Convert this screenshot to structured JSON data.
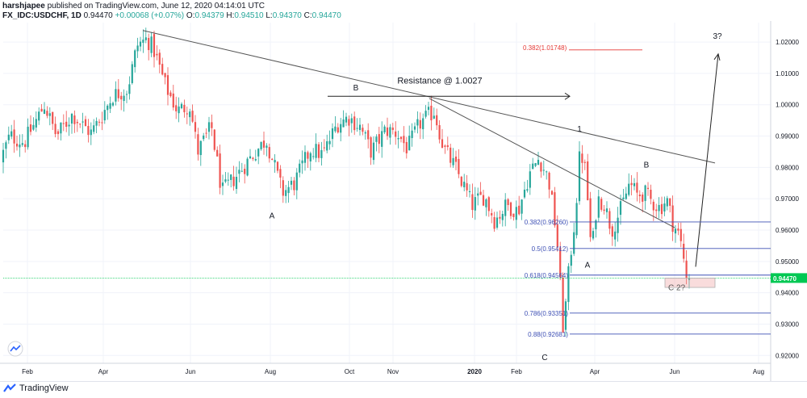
{
  "header": {
    "author": "harshjapee",
    "published": "published on TradingView.com, June 12, 2020 04:14:01 UTC",
    "symbol": "FX_IDC:USDCHF, 1D",
    "last": "0.94470",
    "change": "+0.00068 (+0.07%)",
    "o_label": "O:",
    "o_value": "0.94379",
    "h_label": "H:",
    "h_value": "0.94510",
    "l_label": "L:",
    "l_value": "0.94370",
    "c_label": "C:",
    "c_value": "0.94470"
  },
  "footer": {
    "brand": "TradingView"
  },
  "colors": {
    "up": "#26a69a",
    "down": "#ef5350",
    "fib": "#3f51b5",
    "red": "#e53935",
    "grid": "#f0f3fa",
    "price_badge": "#00c853"
  },
  "chart_data": {
    "type": "candlestick",
    "ylim": [
      0.9175,
      1.0262
    ],
    "y_ticks": [
      "1.02000",
      "1.01000",
      "1.00000",
      "0.99000",
      "0.98000",
      "0.97000",
      "0.96000",
      "0.95000",
      "0.94000",
      "0.93000",
      "0.92000"
    ],
    "y_tick_values": [
      1.02,
      1.01,
      1.0,
      0.99,
      0.98,
      0.97,
      0.96,
      0.95,
      0.94,
      0.93,
      0.92
    ],
    "x_labels": [
      "Feb",
      "Apr",
      "Jun",
      "Aug",
      "Oct",
      "Nov",
      "2020",
      "Feb",
      "Apr",
      "Jun",
      "Aug"
    ],
    "x_label_positions": [
      34,
      128,
      236,
      335,
      433,
      487,
      588,
      640,
      737,
      836,
      940
    ],
    "price_badge": "0.94470",
    "last_price": 0.9447,
    "close_anchors": [
      [
        0,
        0.982
      ],
      [
        12,
        0.99
      ],
      [
        30,
        0.988
      ],
      [
        45,
        0.995
      ],
      [
        55,
        1.0
      ],
      [
        70,
        0.99
      ],
      [
        90,
        0.997
      ],
      [
        100,
        0.994
      ],
      [
        113,
        0.991
      ],
      [
        125,
        0.996
      ],
      [
        140,
        1.003
      ],
      [
        158,
        1.005
      ],
      [
        170,
        1.019
      ],
      [
        182,
        1.021
      ],
      [
        190,
        1.018
      ],
      [
        205,
        1.006
      ],
      [
        220,
        0.998
      ],
      [
        235,
        1.0
      ],
      [
        245,
        0.985
      ],
      [
        262,
        0.993
      ],
      [
        275,
        0.972
      ],
      [
        292,
        0.977
      ],
      [
        310,
        0.983
      ],
      [
        330,
        0.989
      ],
      [
        350,
        0.972
      ],
      [
        365,
        0.975
      ],
      [
        385,
        0.986
      ],
      [
        400,
        0.984
      ],
      [
        418,
        0.994
      ],
      [
        432,
        0.996
      ],
      [
        446,
        0.993
      ],
      [
        460,
        0.985
      ],
      [
        478,
        0.992
      ],
      [
        492,
        0.991
      ],
      [
        505,
        0.986
      ],
      [
        520,
        0.994
      ],
      [
        538,
        0.998
      ],
      [
        550,
        0.986
      ],
      [
        566,
        0.979
      ],
      [
        585,
        0.968
      ],
      [
        600,
        0.971
      ],
      [
        613,
        0.963
      ],
      [
        628,
        0.968
      ],
      [
        642,
        0.966
      ],
      [
        656,
        0.978
      ],
      [
        668,
        0.983
      ],
      [
        680,
        0.976
      ],
      [
        690,
        0.958
      ],
      [
        698,
        0.928
      ],
      [
        706,
        0.95
      ],
      [
        713,
        0.965
      ],
      [
        719,
        0.986
      ],
      [
        726,
        0.978
      ],
      [
        733,
        0.952
      ],
      [
        740,
        0.97
      ],
      [
        748,
        0.969
      ],
      [
        758,
        0.96
      ],
      [
        770,
        0.967
      ],
      [
        780,
        0.975
      ],
      [
        790,
        0.971
      ],
      [
        798,
        0.972
      ],
      [
        808,
        0.969
      ],
      [
        818,
        0.967
      ],
      [
        826,
        0.97
      ],
      [
        834,
        0.962
      ],
      [
        842,
        0.958
      ],
      [
        848,
        0.95
      ],
      [
        854,
        0.9447
      ]
    ],
    "annotations": {
      "labels": [
        {
          "text": "A",
          "x": 337,
          "y": 0.9637
        },
        {
          "text": "B",
          "x": 441,
          "y": 1.0045
        },
        {
          "text": "Resistance @ 1.0027",
          "x": 545,
          "y": 1.0067
        },
        {
          "text": "1",
          "x": 718,
          "y": 0.9914
        },
        {
          "text": "B",
          "x": 801,
          "y": 0.98
        },
        {
          "text": "A",
          "x": 728,
          "y": 0.948
        },
        {
          "text": "C",
          "x": 675,
          "y": 0.9185
        },
        {
          "text": "C 2?",
          "x": 828,
          "y": 0.9408
        },
        {
          "text": "3?",
          "x": 889,
          "y": 1.021
        },
        {
          "text": "0.382(1.01748)",
          "x": 648,
          "y": 1.0174
        }
      ],
      "fib_levels": [
        {
          "label": "0.382(0.96260)",
          "value": 0.9626
        },
        {
          "label": "0.5(0.95412)",
          "value": 0.95412
        },
        {
          "label": "0.618(0.94564)",
          "value": 0.94564
        },
        {
          "label": "0.786(0.93351)",
          "value": 0.93351
        },
        {
          "label": "0.88(0.92681)",
          "value": 0.92681
        }
      ],
      "red_level": {
        "label": "0.382(1.01748)",
        "value": 1.01748
      }
    }
  }
}
